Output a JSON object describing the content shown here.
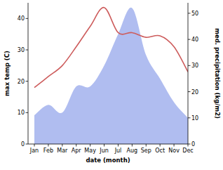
{
  "chart_data": {
    "type": "line",
    "categories": [
      "Jan",
      "Feb",
      "Mar",
      "Apr",
      "May",
      "Jun",
      "Jul",
      "Aug",
      "Sep",
      "Oct",
      "Nov",
      "Dec"
    ],
    "xlabel": "date (month)",
    "ylabel": "max temp (C)",
    "y2label": "med. precipitation (kg/m2)",
    "ylim": [
      0,
      45
    ],
    "yticks": [
      0,
      10,
      20,
      30,
      40
    ],
    "y2lim": [
      0,
      54
    ],
    "y2ticks": [
      0,
      10,
      20,
      30,
      40,
      50
    ],
    "grid": false,
    "series": [
      {
        "type": "area",
        "axis": "y2",
        "color": "#b0bdf0",
        "values": [
          11,
          15,
          12,
          22,
          22,
          30,
          42,
          52,
          34,
          25,
          16,
          10
        ]
      },
      {
        "type": "line",
        "color": "#cd5c5c",
        "values": [
          18,
          21.5,
          25,
          31,
          37.5,
          43.5,
          35.5,
          35.5,
          34,
          34.5,
          31,
          23
        ]
      }
    ]
  }
}
